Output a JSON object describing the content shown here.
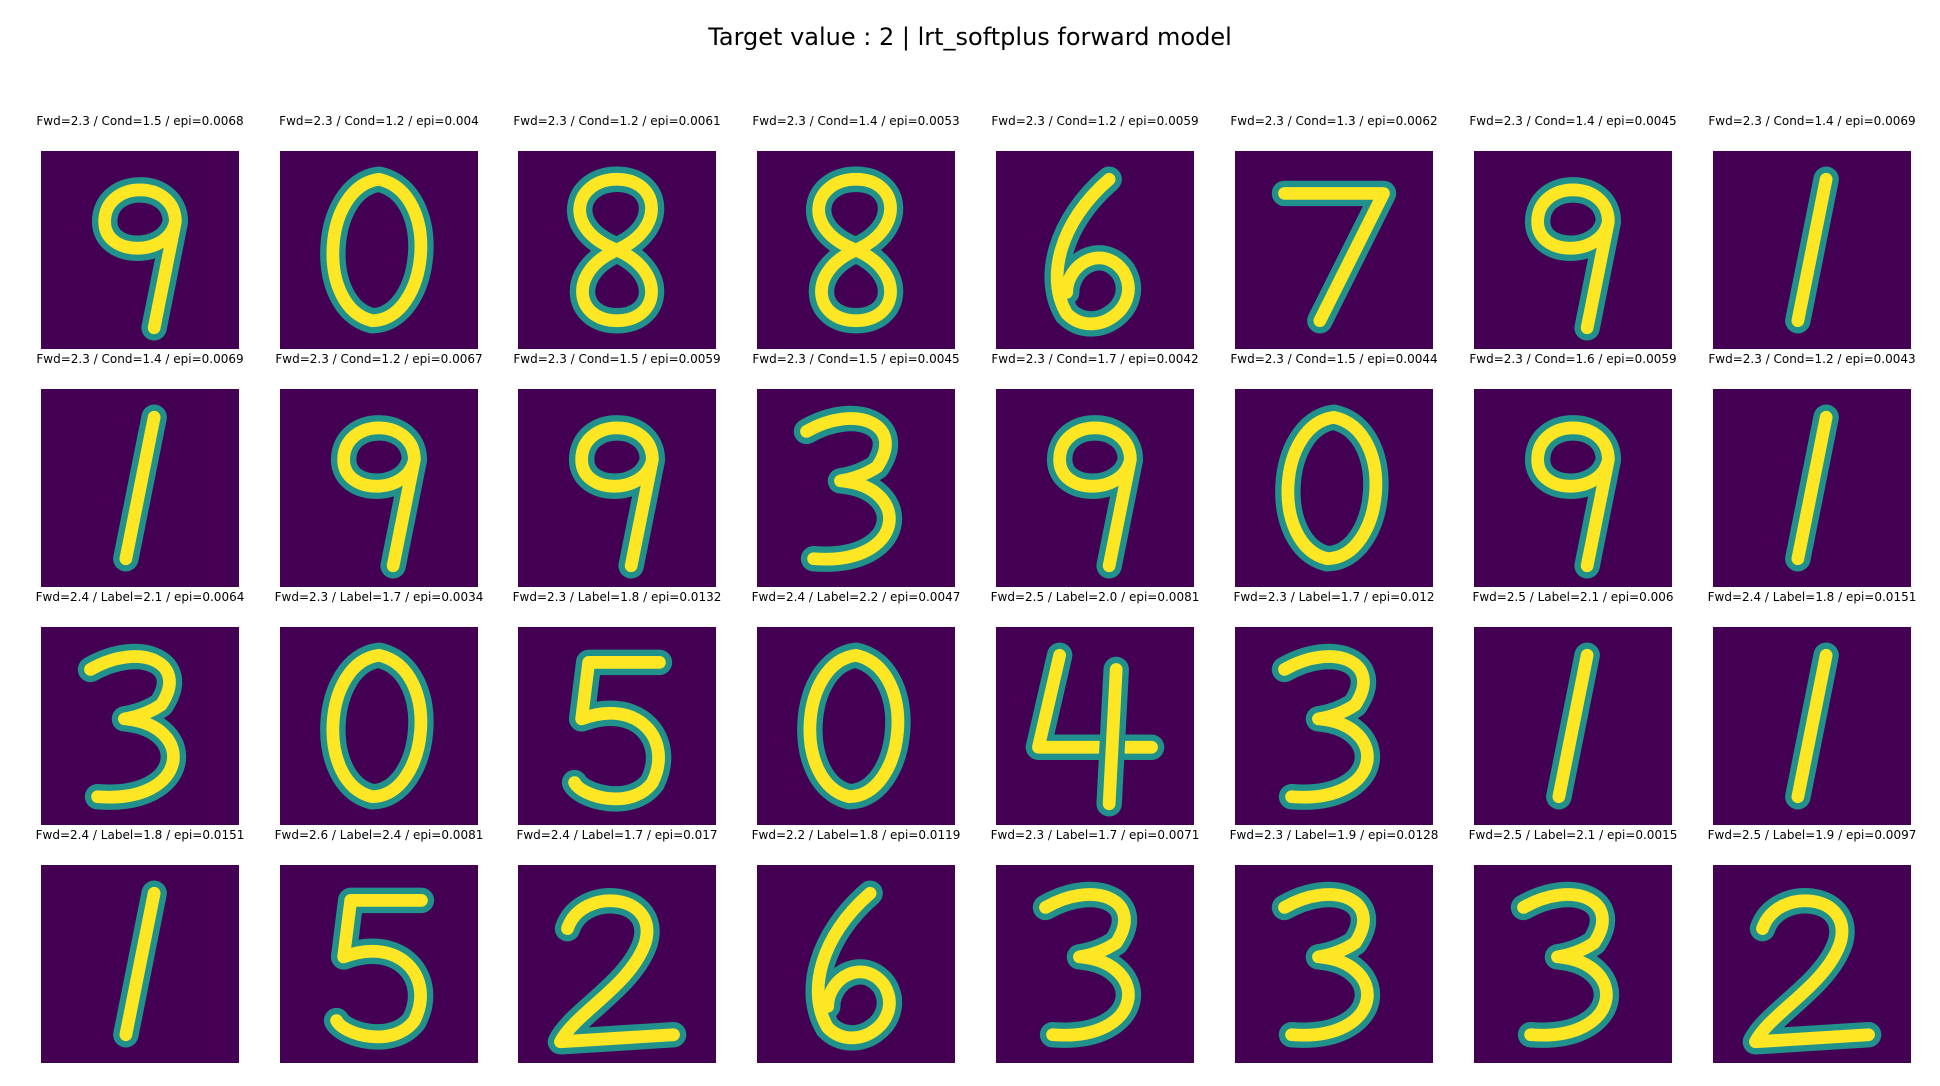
{
  "figure": {
    "title": "Target value : 2 | lrt_softplus forward model",
    "colors": {
      "background": "#440154",
      "mid": "#21918c",
      "high": "#fde725"
    },
    "rows": [
      {
        "samples": [
          {
            "caption": "Fwd=2.3 / Cond=1.5 / epi=0.0068",
            "digit": "9"
          },
          {
            "caption": "Fwd=2.3 / Cond=1.2 / epi=0.004",
            "digit": "0"
          },
          {
            "caption": "Fwd=2.3 / Cond=1.2 / epi=0.0061",
            "digit": "8"
          },
          {
            "caption": "Fwd=2.3 / Cond=1.4 / epi=0.0053",
            "digit": "8"
          },
          {
            "caption": "Fwd=2.3 / Cond=1.2 / epi=0.0059",
            "digit": "6"
          },
          {
            "caption": "Fwd=2.3 / Cond=1.3 / epi=0.0062",
            "digit": "7"
          },
          {
            "caption": "Fwd=2.3 / Cond=1.4 / epi=0.0045",
            "digit": "9"
          },
          {
            "caption": "Fwd=2.3 / Cond=1.4 / epi=0.0069",
            "digit": "1"
          }
        ]
      },
      {
        "samples": [
          {
            "caption": "Fwd=2.3 / Cond=1.4 / epi=0.0069",
            "digit": "1"
          },
          {
            "caption": "Fwd=2.3 / Cond=1.2 / epi=0.0067",
            "digit": "9"
          },
          {
            "caption": "Fwd=2.3 / Cond=1.5 / epi=0.0059",
            "digit": "9"
          },
          {
            "caption": "Fwd=2.3 / Cond=1.5 / epi=0.0045",
            "digit": "3"
          },
          {
            "caption": "Fwd=2.3 / Cond=1.7 / epi=0.0042",
            "digit": "9"
          },
          {
            "caption": "Fwd=2.3 / Cond=1.5 / epi=0.0044",
            "digit": "0"
          },
          {
            "caption": "Fwd=2.3 / Cond=1.6 / epi=0.0059",
            "digit": "9"
          },
          {
            "caption": "Fwd=2.3 / Cond=1.2 / epi=0.0043",
            "digit": "1"
          }
        ]
      },
      {
        "samples": [
          {
            "caption": "Fwd=2.4 / Label=2.1 / epi=0.0064",
            "digit": "3"
          },
          {
            "caption": "Fwd=2.3 / Label=1.7 / epi=0.0034",
            "digit": "0"
          },
          {
            "caption": "Fwd=2.3 / Label=1.8 / epi=0.0132",
            "digit": "5"
          },
          {
            "caption": "Fwd=2.4 / Label=2.2 / epi=0.0047",
            "digit": "0"
          },
          {
            "caption": "Fwd=2.5 / Label=2.0 / epi=0.0081",
            "digit": "4"
          },
          {
            "caption": "Fwd=2.3 / Label=1.7 / epi=0.012",
            "digit": "3"
          },
          {
            "caption": "Fwd=2.5 / Label=2.1 / epi=0.006",
            "digit": "1"
          },
          {
            "caption": "Fwd=2.4 / Label=1.8 / epi=0.0151",
            "digit": "1"
          }
        ]
      },
      {
        "samples": [
          {
            "caption": "Fwd=2.4 / Label=1.8 / epi=0.0151",
            "digit": "1"
          },
          {
            "caption": "Fwd=2.6 / Label=2.4 / epi=0.0081",
            "digit": "5"
          },
          {
            "caption": "Fwd=2.4 / Label=1.7 / epi=0.017",
            "digit": "2"
          },
          {
            "caption": "Fwd=2.2 / Label=1.8 / epi=0.0119",
            "digit": "6"
          },
          {
            "caption": "Fwd=2.3 / Label=1.7 / epi=0.0071",
            "digit": "3"
          },
          {
            "caption": "Fwd=2.3 / Label=1.9 / epi=0.0128",
            "digit": "3"
          },
          {
            "caption": "Fwd=2.5 / Label=2.1 / epi=0.0015",
            "digit": "3"
          },
          {
            "caption": "Fwd=2.5 / Label=1.9 / epi=0.0097",
            "digit": "2"
          }
        ]
      }
    ]
  }
}
